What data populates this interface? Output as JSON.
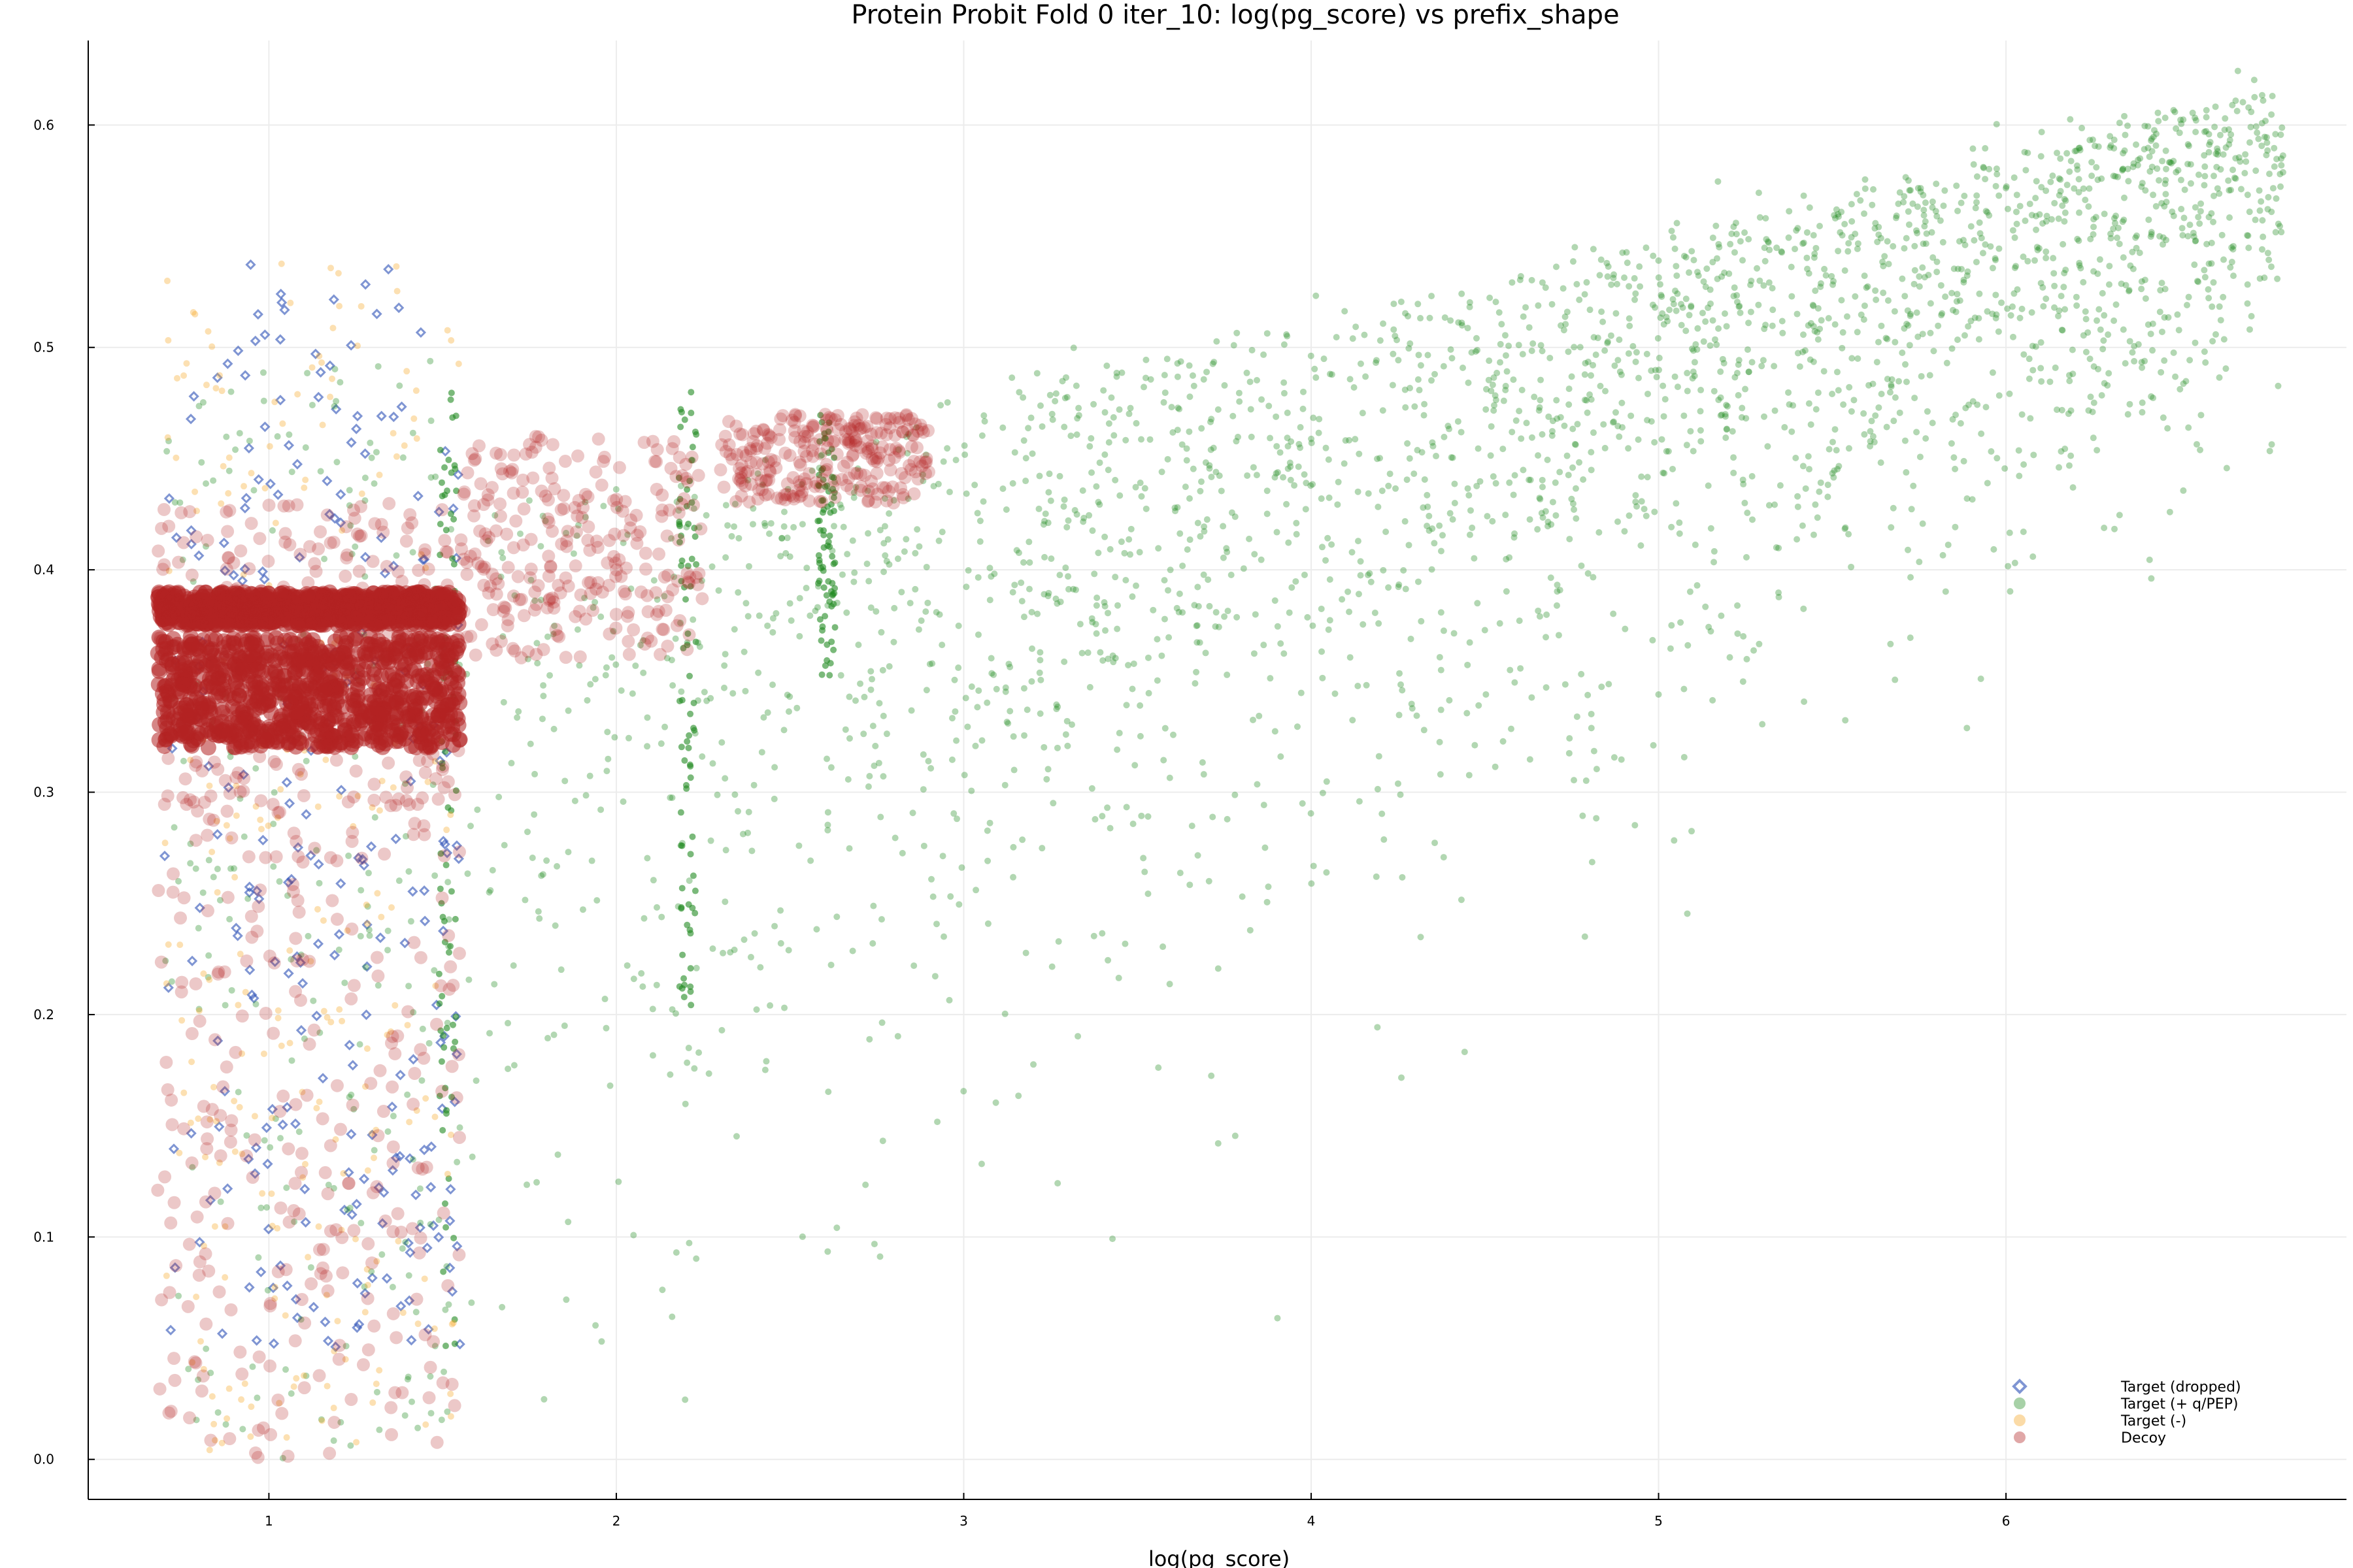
{
  "chart_data": {
    "type": "scatter",
    "title": "Protein Probit Fold 0 iter_10: log(pg_score) vs prefix_shape",
    "xlabel": "log(pg_score)",
    "ylabel": "",
    "xlim": [
      0.48,
      6.98
    ],
    "ylim": [
      -0.018,
      0.638
    ],
    "x_ticks": [
      1,
      2,
      3,
      4,
      5,
      6
    ],
    "y_ticks": [
      0.0,
      0.1,
      0.2,
      0.3,
      0.4,
      0.5,
      0.6
    ],
    "y_tick_labels": [
      "0.0",
      "0.1",
      "0.2",
      "0.3",
      "0.4",
      "0.5",
      "0.6"
    ],
    "grid": true,
    "legend_position": "bottom-right",
    "series": [
      {
        "name": "Target (dropped)",
        "color": "#2a4fb5",
        "marker": "diamond",
        "clusters": [
          {
            "kind": "band",
            "x": [
              0.7,
              1.55
            ],
            "y": [
              0.05,
              0.54
            ]
          }
        ]
      },
      {
        "name": "Target (+ q/PEP)",
        "color": "#228b22",
        "marker": "circle",
        "clusters": [
          {
            "kind": "trend",
            "x": [
              1.55,
              6.8
            ],
            "y_center_at_x_start": 0.42,
            "y_center_at_x_end": 0.615,
            "spread_below": 0.35
          },
          {
            "kind": "band",
            "x": [
              0.7,
              1.55
            ],
            "y": [
              0.0,
              0.5
            ]
          },
          {
            "kind": "edge",
            "x": [
              1.49,
              1.54
            ],
            "y": [
              0.05,
              0.48
            ]
          },
          {
            "kind": "edge",
            "x": [
              2.18,
              2.23
            ],
            "y": [
              0.2,
              0.48
            ]
          },
          {
            "kind": "edge",
            "x": [
              2.58,
              2.63
            ],
            "y": [
              0.35,
              0.47
            ]
          }
        ]
      },
      {
        "name": "Target (-)",
        "color": "#f5a623",
        "marker": "circle",
        "clusters": [
          {
            "kind": "band",
            "x": [
              0.7,
              1.55
            ],
            "y": [
              0.0,
              0.54
            ]
          }
        ]
      },
      {
        "name": "Decoy",
        "color": "#b22222",
        "marker": "circle",
        "clusters": [
          {
            "kind": "dense",
            "x": [
              0.68,
              1.55
            ],
            "y": [
              0.32,
              0.37
            ]
          },
          {
            "kind": "dense",
            "x": [
              0.68,
              1.55
            ],
            "y": [
              0.375,
              0.39
            ]
          },
          {
            "kind": "band",
            "x": [
              0.68,
              1.55
            ],
            "y": [
              0.29,
              0.43
            ]
          },
          {
            "kind": "band",
            "x": [
              1.55,
              2.25
            ],
            "y": [
              0.36,
              0.46
            ]
          },
          {
            "kind": "band",
            "x": [
              2.3,
              2.9
            ],
            "y": [
              0.43,
              0.47
            ]
          },
          {
            "kind": "band",
            "x": [
              0.68,
              1.55
            ],
            "y": [
              0.0,
              0.3
            ]
          }
        ]
      }
    ]
  }
}
